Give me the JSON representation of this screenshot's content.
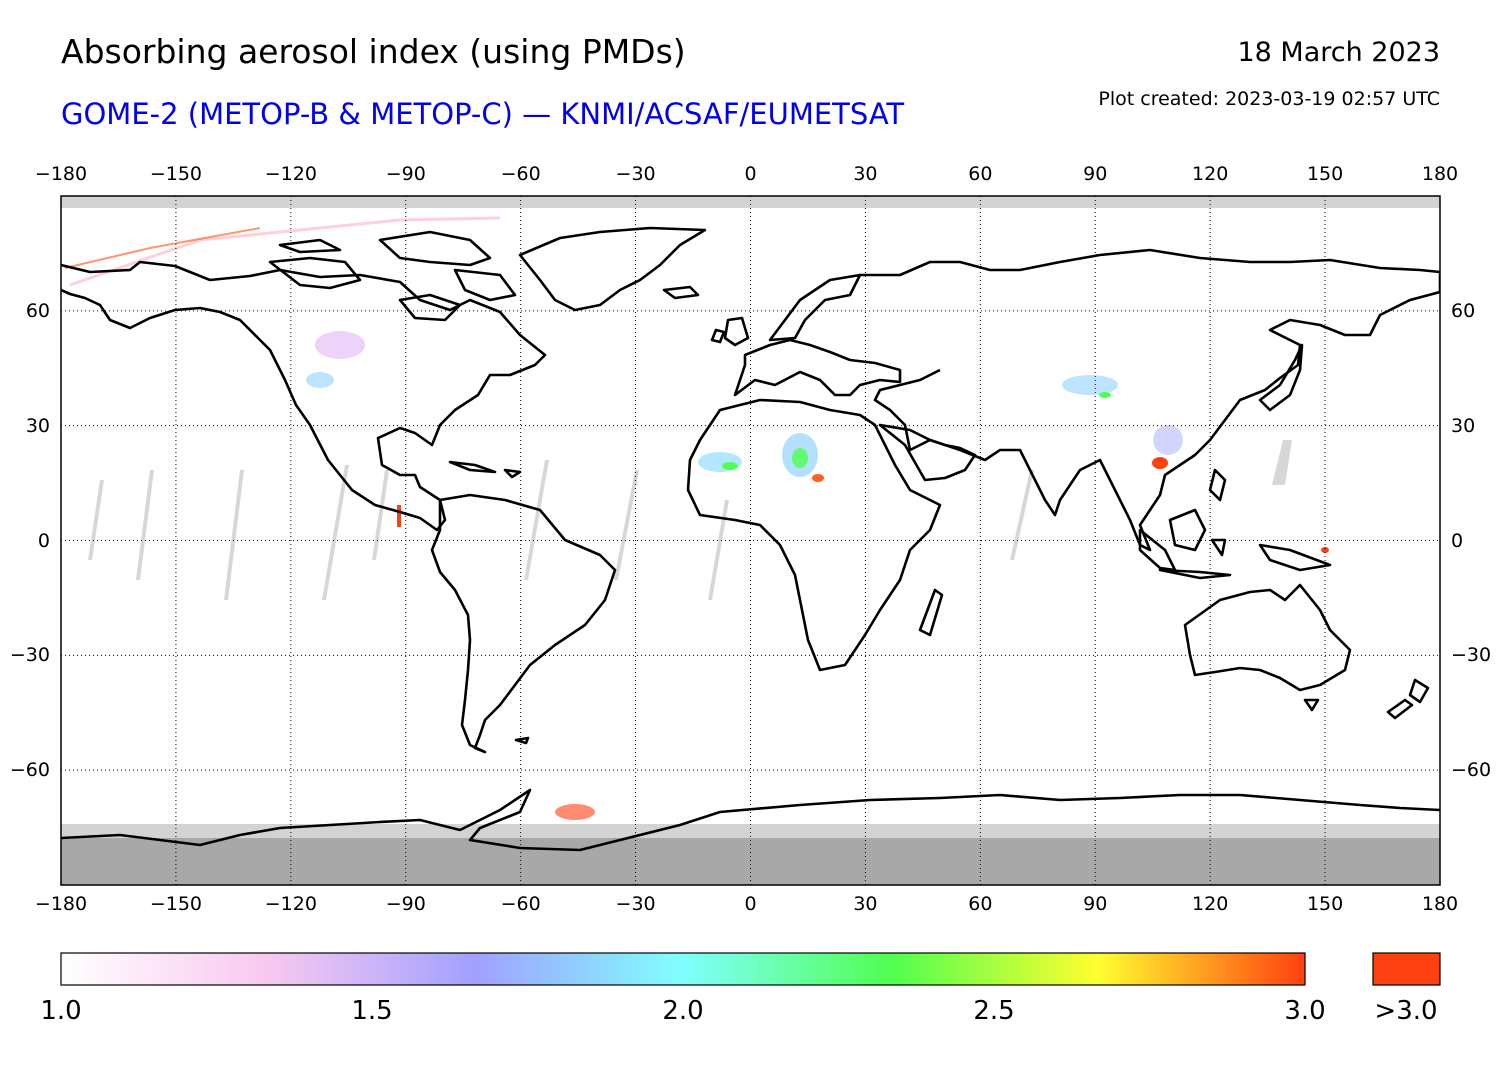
{
  "header": {
    "title": "Absorbing aerosol index (using PMDs)",
    "subtitle": "GOME-2 (METOP-B & METOP-C) — KNMI/ACSAF/EUMETSAT",
    "date": "18 March 2023",
    "created": "Plot created: 2023-03-19 02:57 UTC",
    "subtitle_color": "#0000ee"
  },
  "axes": {
    "lon_ticks": [
      -180,
      -150,
      -120,
      -90,
      -60,
      -30,
      0,
      30,
      60,
      90,
      120,
      150,
      180
    ],
    "lon_labels": [
      "−180",
      "−150",
      "−120",
      "−90",
      "−60",
      "−30",
      "0",
      "30",
      "60",
      "90",
      "120",
      "150",
      "180"
    ],
    "lat_ticks": [
      60,
      30,
      0,
      -30,
      -60
    ],
    "lat_labels": [
      "60",
      "30",
      "0",
      "−30",
      "−60"
    ],
    "lon_range": [
      -180,
      180
    ],
    "lat_range": [
      -90,
      90
    ],
    "grid": "dotted"
  },
  "colorbar": {
    "range": [
      1.0,
      3.0
    ],
    "labels": [
      "1.0",
      "1.5",
      "2.0",
      "2.5",
      "3.0"
    ],
    "overflow_label": ">3.0",
    "overflow_color": "#ff4010",
    "stops": [
      "#ffffff",
      "#f8c8f0",
      "#a0a0ff",
      "#80ffff",
      "#50ff50",
      "#ffff30",
      "#ff4010"
    ]
  },
  "colors": {
    "no_data": "#d3d3d3",
    "polar_night": "#a8a8a8",
    "coastline": "#000000"
  }
}
